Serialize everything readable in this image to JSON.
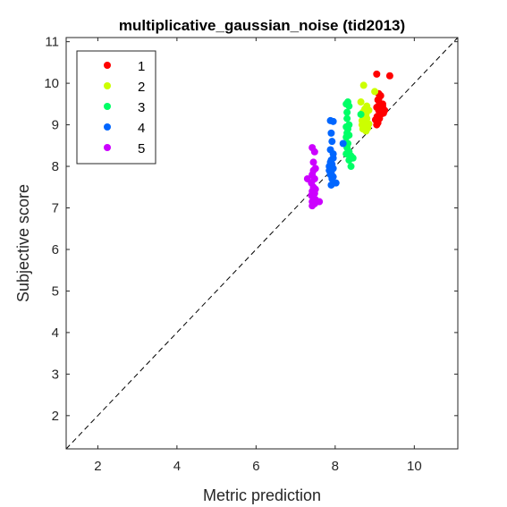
{
  "chart_data": {
    "type": "scatter",
    "title": "multiplicative_gaussian_noise (tid2013)",
    "xlabel": "Metric prediction",
    "ylabel": "Subjective score",
    "xlim": [
      1.2,
      11.1
    ],
    "ylim": [
      1.2,
      11.1
    ],
    "xticks": [
      2,
      4,
      6,
      8,
      10
    ],
    "yticks": [
      2,
      3,
      4,
      5,
      6,
      7,
      8,
      9,
      10,
      11
    ],
    "reference_line": "y = x (dashed)",
    "grid": false,
    "legend_position": "top-left",
    "series": [
      {
        "name": "1",
        "color": "#ff0000",
        "points": [
          [
            9.05,
            10.22
          ],
          [
            9.38,
            10.18
          ],
          [
            9.1,
            9.75
          ],
          [
            9.15,
            9.7
          ],
          [
            9.08,
            9.6
          ],
          [
            9.12,
            9.5
          ],
          [
            9.2,
            9.45
          ],
          [
            9.05,
            9.42
          ],
          [
            9.1,
            9.35
          ],
          [
            9.18,
            9.3
          ],
          [
            9.22,
            9.28
          ],
          [
            9.06,
            9.2
          ],
          [
            9.12,
            9.15
          ],
          [
            9.08,
            9.05
          ],
          [
            9.05,
            9.0
          ],
          [
            9.15,
            9.25
          ],
          [
            9.2,
            9.5
          ],
          [
            9.1,
            9.62
          ],
          [
            9.02,
            9.12
          ],
          [
            9.25,
            9.35
          ]
        ]
      },
      {
        "name": "2",
        "color": "#ccff00",
        "points": [
          [
            8.72,
            9.95
          ],
          [
            9.0,
            9.8
          ],
          [
            8.65,
            9.55
          ],
          [
            8.8,
            9.45
          ],
          [
            8.75,
            9.38
          ],
          [
            8.85,
            9.35
          ],
          [
            8.7,
            9.3
          ],
          [
            8.78,
            9.25
          ],
          [
            8.72,
            9.2
          ],
          [
            8.8,
            9.15
          ],
          [
            8.68,
            9.1
          ],
          [
            8.75,
            9.05
          ],
          [
            8.85,
            9.02
          ],
          [
            8.72,
            8.98
          ],
          [
            8.8,
            8.95
          ],
          [
            8.7,
            8.9
          ],
          [
            8.75,
            8.88
          ],
          [
            8.78,
            8.85
          ],
          [
            8.68,
            9.0
          ],
          [
            8.82,
            8.92
          ]
        ]
      },
      {
        "name": "3",
        "color": "#00ff66",
        "points": [
          [
            8.32,
            9.55
          ],
          [
            8.28,
            9.5
          ],
          [
            8.35,
            9.45
          ],
          [
            8.3,
            9.3
          ],
          [
            8.65,
            9.25
          ],
          [
            8.3,
            9.15
          ],
          [
            8.35,
            9.0
          ],
          [
            8.28,
            8.95
          ],
          [
            8.32,
            8.9
          ],
          [
            8.3,
            8.8
          ],
          [
            8.35,
            8.75
          ],
          [
            8.28,
            8.7
          ],
          [
            8.32,
            8.55
          ],
          [
            8.3,
            8.45
          ],
          [
            8.35,
            8.35
          ],
          [
            8.28,
            8.3
          ],
          [
            8.4,
            8.25
          ],
          [
            8.45,
            8.2
          ],
          [
            8.35,
            8.15
          ],
          [
            8.4,
            8.0
          ]
        ]
      },
      {
        "name": "4",
        "color": "#0066ff",
        "points": [
          [
            7.88,
            9.1
          ],
          [
            7.95,
            9.08
          ],
          [
            8.2,
            8.55
          ],
          [
            7.9,
            8.8
          ],
          [
            7.92,
            8.6
          ],
          [
            7.88,
            8.4
          ],
          [
            7.95,
            8.3
          ],
          [
            7.9,
            8.15
          ],
          [
            7.92,
            8.05
          ],
          [
            7.85,
            8.0
          ],
          [
            7.95,
            7.95
          ],
          [
            7.9,
            7.85
          ],
          [
            7.88,
            7.8
          ],
          [
            7.95,
            7.75
          ],
          [
            7.92,
            7.7
          ],
          [
            8.02,
            7.6
          ],
          [
            7.9,
            7.55
          ],
          [
            7.88,
            8.1
          ],
          [
            7.95,
            8.2
          ],
          [
            7.85,
            7.9
          ]
        ]
      },
      {
        "name": "5",
        "color": "#cc00ff",
        "points": [
          [
            7.42,
            8.45
          ],
          [
            7.48,
            8.35
          ],
          [
            7.45,
            8.1
          ],
          [
            7.5,
            7.95
          ],
          [
            7.42,
            7.8
          ],
          [
            7.48,
            7.7
          ],
          [
            7.4,
            7.6
          ],
          [
            7.45,
            7.5
          ],
          [
            7.5,
            7.45
          ],
          [
            7.42,
            7.4
          ],
          [
            7.48,
            7.35
          ],
          [
            7.4,
            7.3
          ],
          [
            7.45,
            7.25
          ],
          [
            7.5,
            7.2
          ],
          [
            7.42,
            7.15
          ],
          [
            7.48,
            7.1
          ],
          [
            7.6,
            7.15
          ],
          [
            7.3,
            7.7
          ],
          [
            7.45,
            7.9
          ],
          [
            7.42,
            7.05
          ]
        ]
      }
    ]
  }
}
